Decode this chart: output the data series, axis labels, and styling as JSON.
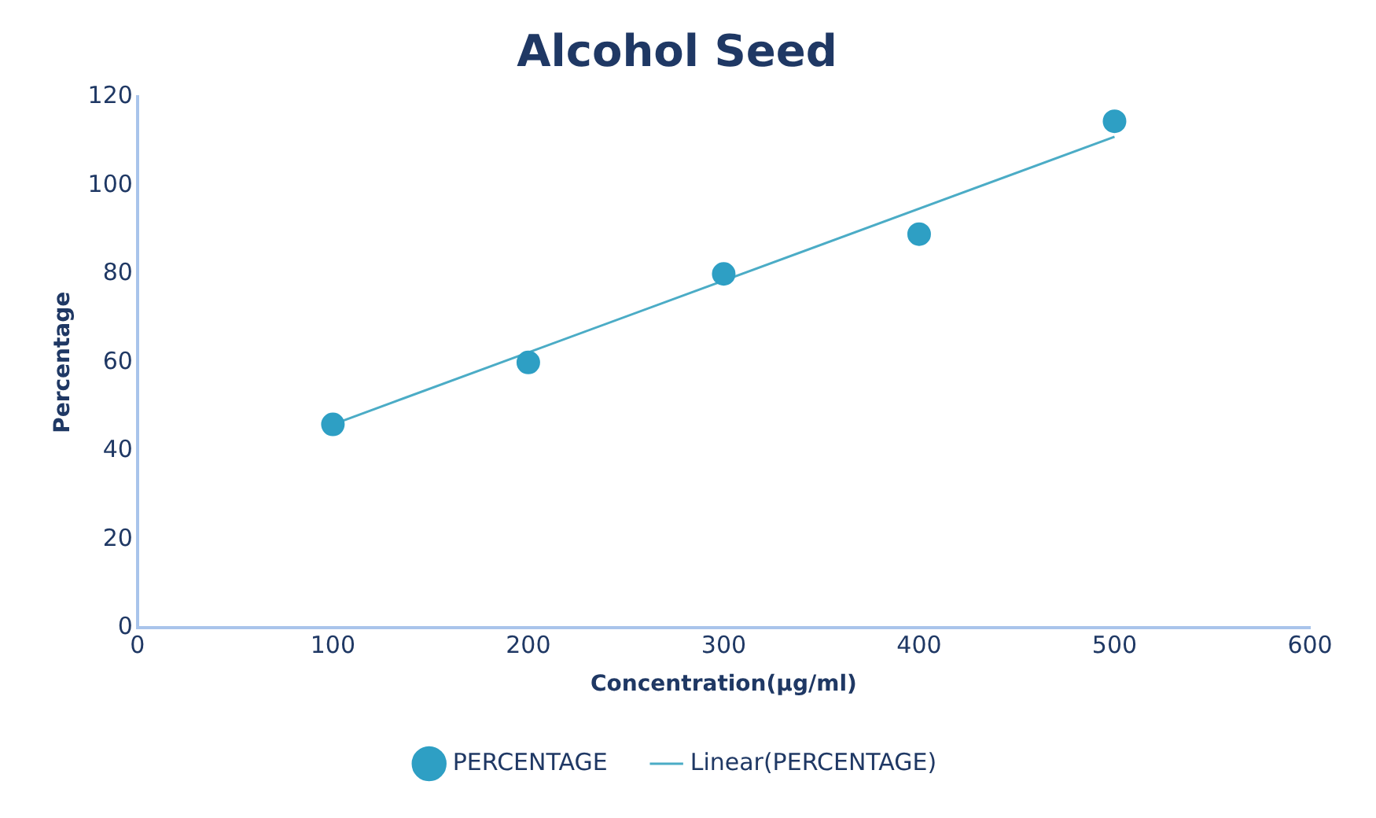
{
  "chart_data": {
    "type": "scatter",
    "title": "Alcohol Seed",
    "xlabel": "Concentration(µg/ml)",
    "ylabel": "Percentage",
    "x": [
      100,
      200,
      300,
      400,
      500
    ],
    "series": [
      {
        "name": "PERCENTAGE",
        "color": "#2e9fc4",
        "marker": "circle",
        "values": [
          46,
          60,
          80,
          89,
          114.5
        ]
      },
      {
        "name": "Linear(PERCENTAGE)",
        "type": "line",
        "color": "#4bacc6",
        "x": [
          100,
          500
        ],
        "values": [
          46,
          111
        ]
      }
    ],
    "xlim": [
      0,
      600
    ],
    "xticks": [
      0,
      100,
      200,
      300,
      400,
      500,
      600
    ],
    "ylim": [
      0,
      120
    ],
    "yticks": [
      0,
      20,
      40,
      60,
      80,
      100,
      120
    ],
    "grid": false,
    "legend": "bottom",
    "line_style": "solid"
  }
}
